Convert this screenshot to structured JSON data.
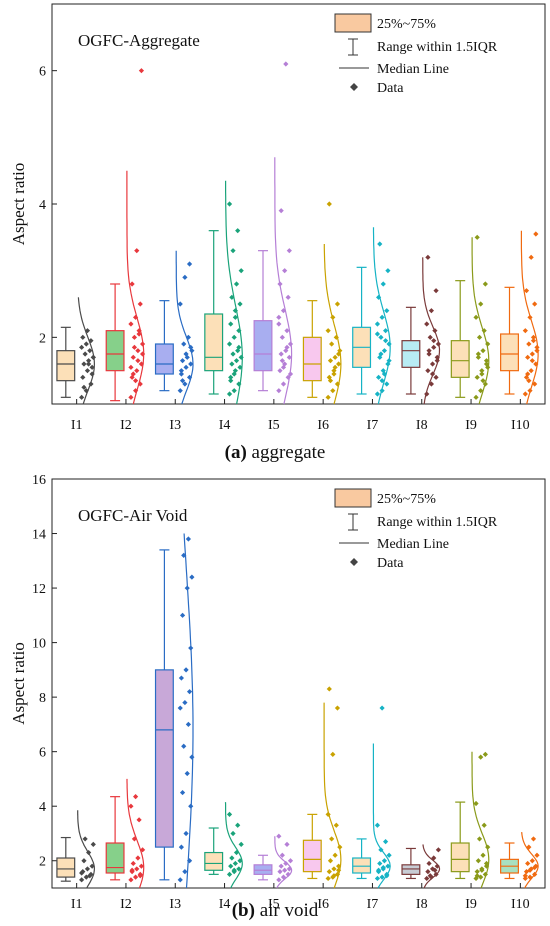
{
  "legend": {
    "box_label": "25%~75%",
    "range_label": "Range within 1.5IQR",
    "median_label": "Median Line",
    "data_label": "Data"
  },
  "colors": [
    "#4a4a4a",
    "#e8383d",
    "#2a6cc4",
    "#1aa37a",
    "#b57fd6",
    "#c9a200",
    "#16b3c5",
    "#7a3a3a",
    "#8a9a1a",
    "#f06a10"
  ],
  "chart_data": [
    {
      "type": "box",
      "title": "OGFC-Aggregate",
      "caption_letter": "(a)",
      "caption_text": " aggregate",
      "ylabel": "Aspect ratio",
      "ylim": [
        1,
        7
      ],
      "yticks": [
        2,
        4,
        6
      ],
      "categories": [
        "I1",
        "I2",
        "I3",
        "I4",
        "I5",
        "I6",
        "I7",
        "I8",
        "I9",
        "I10"
      ],
      "box_fills": [
        "#fce0b8",
        "#86d08a",
        "#a8aef0",
        "#fce0b8",
        "#a8aef0",
        "#f8c8ee",
        "#fce0b8",
        "#b8ecf4",
        "#fce0b8",
        "#fce0b8"
      ],
      "stats": [
        {
          "min": 1.1,
          "q1": 1.35,
          "median": 1.6,
          "q3": 1.8,
          "max": 2.15,
          "curve_max": 2.6,
          "points": [
            1.1,
            1.2,
            1.3,
            1.4,
            1.5,
            1.55,
            1.6,
            1.65,
            1.7,
            1.75,
            1.8,
            1.85,
            1.9,
            1.95,
            2.0,
            2.1,
            1.45,
            1.25,
            1.6,
            1.7
          ]
        },
        {
          "min": 1.05,
          "q1": 1.5,
          "median": 1.75,
          "q3": 2.1,
          "max": 2.8,
          "curve_max": 4.5,
          "points": [
            1.1,
            1.2,
            1.3,
            1.4,
            1.5,
            1.6,
            1.7,
            1.8,
            1.9,
            2.0,
            2.1,
            2.2,
            2.3,
            2.5,
            2.8,
            3.3,
            6.0,
            1.45,
            1.65,
            1.75,
            1.85,
            2.05,
            1.55,
            1.35
          ]
        },
        {
          "min": 1.2,
          "q1": 1.45,
          "median": 1.6,
          "q3": 1.9,
          "max": 2.55,
          "curve_max": 3.3,
          "points": [
            1.2,
            1.3,
            1.4,
            1.5,
            1.55,
            1.6,
            1.65,
            1.7,
            1.8,
            1.9,
            2.0,
            2.5,
            2.9,
            3.1,
            1.45,
            1.75,
            1.85,
            1.35
          ]
        },
        {
          "min": 1.15,
          "q1": 1.5,
          "median": 1.7,
          "q3": 2.35,
          "max": 3.6,
          "curve_max": 4.35,
          "points": [
            1.15,
            1.2,
            1.3,
            1.4,
            1.5,
            1.55,
            1.6,
            1.65,
            1.7,
            1.75,
            1.8,
            1.9,
            2.0,
            2.1,
            2.2,
            2.4,
            2.5,
            2.6,
            2.8,
            3.0,
            3.3,
            3.6,
            4.0,
            1.45,
            1.85,
            1.35,
            2.3
          ]
        },
        {
          "min": 1.2,
          "q1": 1.5,
          "median": 1.75,
          "q3": 2.25,
          "max": 3.3,
          "curve_max": 4.7,
          "points": [
            1.2,
            1.3,
            1.4,
            1.5,
            1.6,
            1.7,
            1.75,
            1.8,
            1.9,
            2.0,
            2.1,
            2.2,
            2.4,
            2.6,
            2.8,
            3.0,
            3.3,
            3.9,
            6.1,
            1.45,
            1.65,
            1.85,
            2.3,
            1.55
          ]
        },
        {
          "min": 1.1,
          "q1": 1.35,
          "median": 1.6,
          "q3": 2.0,
          "max": 2.55,
          "curve_max": 3.4,
          "points": [
            1.1,
            1.2,
            1.3,
            1.4,
            1.5,
            1.6,
            1.65,
            1.7,
            1.8,
            1.9,
            2.0,
            2.1,
            2.3,
            2.5,
            4.0,
            1.45,
            1.75,
            1.35,
            1.55
          ]
        },
        {
          "min": 1.15,
          "q1": 1.55,
          "median": 1.85,
          "q3": 2.15,
          "max": 3.05,
          "curve_max": 3.65,
          "points": [
            1.15,
            1.2,
            1.3,
            1.4,
            1.5,
            1.6,
            1.7,
            1.8,
            1.9,
            2.0,
            2.1,
            2.2,
            2.3,
            2.4,
            2.6,
            2.8,
            3.0,
            3.4,
            1.45,
            1.65,
            1.75,
            1.95,
            2.05,
            1.35
          ]
        },
        {
          "min": 1.15,
          "q1": 1.55,
          "median": 1.8,
          "q3": 1.95,
          "max": 2.45,
          "curve_max": 3.2,
          "points": [
            1.15,
            1.3,
            1.4,
            1.5,
            1.6,
            1.7,
            1.8,
            1.85,
            1.9,
            2.0,
            2.1,
            2.2,
            2.4,
            2.7,
            3.2,
            1.45,
            1.65,
            1.75,
            1.95
          ]
        },
        {
          "min": 1.1,
          "q1": 1.4,
          "median": 1.65,
          "q3": 1.95,
          "max": 2.85,
          "curve_max": 3.5,
          "points": [
            1.1,
            1.2,
            1.3,
            1.4,
            1.5,
            1.6,
            1.7,
            1.8,
            1.9,
            2.0,
            2.1,
            2.3,
            2.5,
            2.8,
            3.5,
            1.45,
            1.65,
            1.75,
            1.35,
            1.55
          ]
        },
        {
          "min": 1.15,
          "q1": 1.5,
          "median": 1.75,
          "q3": 2.05,
          "max": 2.75,
          "curve_max": 3.6,
          "points": [
            1.15,
            1.2,
            1.3,
            1.4,
            1.5,
            1.6,
            1.7,
            1.75,
            1.8,
            1.9,
            2.0,
            2.1,
            2.3,
            2.5,
            2.7,
            3.2,
            3.55,
            1.45,
            1.65,
            1.85,
            1.35,
            1.95
          ]
        }
      ]
    },
    {
      "type": "box",
      "title": "OGFC-Air Void",
      "caption_letter": "(b)",
      "caption_text": " air void",
      "ylabel": "Aspect ratio",
      "ylim": [
        1,
        16
      ],
      "yticks": [
        2,
        4,
        6,
        8,
        10,
        12,
        14,
        16
      ],
      "categories": [
        "I1",
        "I2",
        "I3",
        "I4",
        "I5",
        "I6",
        "I7",
        "I8",
        "I9",
        "I10"
      ],
      "box_fills": [
        "#fce0b8",
        "#86d08a",
        "#c8a8d8",
        "#fce0b8",
        "#a8aef0",
        "#f8c8ee",
        "#fce0b8",
        "#c8ccd4",
        "#fce0b8",
        "#a8e0c0"
      ],
      "stats": [
        {
          "min": 1.25,
          "q1": 1.4,
          "median": 1.7,
          "q3": 2.1,
          "max": 2.85,
          "curve_max": 3.85,
          "points": [
            1.3,
            1.4,
            1.5,
            1.6,
            1.7,
            1.8,
            2.0,
            2.3,
            2.6,
            2.8,
            1.45,
            1.55
          ]
        },
        {
          "min": 1.3,
          "q1": 1.55,
          "median": 1.75,
          "q3": 2.65,
          "max": 4.35,
          "curve_max": 5.0,
          "points": [
            1.3,
            1.4,
            1.5,
            1.6,
            1.7,
            1.8,
            1.9,
            2.1,
            2.4,
            2.8,
            3.5,
            4.0,
            4.35,
            1.45,
            1.65
          ]
        },
        {
          "min": 1.3,
          "q1": 2.5,
          "median": 6.8,
          "q3": 9.0,
          "max": 13.4,
          "curve_max": 14.0,
          "points": [
            1.3,
            1.6,
            2.0,
            2.5,
            3.0,
            4.0,
            4.5,
            5.2,
            5.8,
            6.2,
            7.0,
            7.6,
            7.8,
            8.2,
            8.7,
            9.0,
            9.8,
            11.0,
            12.0,
            12.4,
            13.2,
            13.8
          ]
        },
        {
          "min": 1.5,
          "q1": 1.65,
          "median": 1.9,
          "q3": 2.3,
          "max": 3.2,
          "curve_max": 4.15,
          "points": [
            1.5,
            1.6,
            1.7,
            1.8,
            1.9,
            2.0,
            2.1,
            2.3,
            2.6,
            3.0,
            3.3,
            3.7,
            1.65
          ]
        },
        {
          "min": 1.3,
          "q1": 1.5,
          "median": 1.65,
          "q3": 1.85,
          "max": 2.2,
          "curve_max": 2.9,
          "points": [
            1.3,
            1.4,
            1.5,
            1.6,
            1.65,
            1.7,
            1.8,
            1.9,
            2.0,
            2.2,
            2.6,
            2.9
          ]
        },
        {
          "min": 1.35,
          "q1": 1.6,
          "median": 2.05,
          "q3": 2.75,
          "max": 3.7,
          "curve_max": 7.8,
          "points": [
            1.35,
            1.4,
            1.5,
            1.6,
            1.7,
            1.8,
            2.0,
            2.2,
            2.5,
            2.8,
            3.3,
            3.7,
            5.9,
            7.6,
            8.3,
            1.45,
            1.65
          ]
        },
        {
          "min": 1.35,
          "q1": 1.55,
          "median": 1.8,
          "q3": 2.1,
          "max": 2.8,
          "curve_max": 6.3,
          "points": [
            1.35,
            1.4,
            1.5,
            1.6,
            1.7,
            1.8,
            1.9,
            2.0,
            2.2,
            2.4,
            2.7,
            3.3,
            7.6,
            1.45,
            1.65,
            1.75
          ]
        },
        {
          "min": 1.35,
          "q1": 1.5,
          "median": 1.7,
          "q3": 1.85,
          "max": 2.45,
          "curve_max": 2.6,
          "points": [
            1.35,
            1.4,
            1.5,
            1.6,
            1.7,
            1.8,
            1.9,
            2.1,
            2.4,
            1.45,
            1.65
          ]
        },
        {
          "min": 1.35,
          "q1": 1.6,
          "median": 2.05,
          "q3": 2.65,
          "max": 4.15,
          "curve_max": 6.0,
          "points": [
            1.35,
            1.4,
            1.5,
            1.6,
            1.7,
            1.8,
            2.0,
            2.2,
            2.5,
            2.8,
            3.3,
            4.1,
            5.8,
            5.9,
            1.45,
            1.65,
            1.9
          ]
        },
        {
          "min": 1.35,
          "q1": 1.55,
          "median": 1.8,
          "q3": 2.05,
          "max": 2.65,
          "curve_max": 3.05,
          "points": [
            1.35,
            1.4,
            1.5,
            1.6,
            1.7,
            1.8,
            1.9,
            2.0,
            2.2,
            2.5,
            2.8,
            1.45,
            1.65,
            1.75
          ]
        }
      ]
    }
  ]
}
